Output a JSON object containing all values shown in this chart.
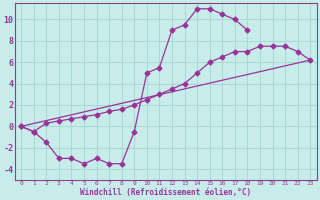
{
  "xlabel": "Windchill (Refroidissement éolien,°C)",
  "bg_color": "#c8ecea",
  "grid_color": "#a8d8d4",
  "line_color": "#993399",
  "spine_color": "#884488",
  "xlim": [
    -0.5,
    23.5
  ],
  "ylim": [
    -5.0,
    11.5
  ],
  "xticks": [
    0,
    1,
    2,
    3,
    4,
    5,
    6,
    7,
    8,
    9,
    10,
    11,
    12,
    13,
    14,
    15,
    16,
    17,
    18,
    19,
    20,
    21,
    22,
    23
  ],
  "yticks": [
    -4,
    -2,
    0,
    2,
    4,
    6,
    8,
    10
  ],
  "line1_x": [
    0,
    1,
    2,
    3,
    4,
    5,
    6,
    7,
    8,
    9,
    10,
    11,
    12,
    13,
    14,
    15,
    16,
    17,
    18
  ],
  "line1_y": [
    0,
    -0.5,
    -1.5,
    -3,
    -3,
    -3.5,
    -3,
    -3.5,
    -3.5,
    -0.5,
    5,
    5.5,
    9,
    9.5,
    11,
    11,
    10.5,
    10,
    9
  ],
  "line2_x": [
    0,
    23
  ],
  "line2_y": [
    0,
    6.2
  ],
  "line3_x": [
    0,
    1,
    2,
    3,
    4,
    5,
    6,
    7,
    8,
    9,
    10,
    11,
    12,
    13,
    14,
    15,
    16,
    17,
    18,
    19,
    20,
    21,
    22,
    23
  ],
  "line3_y": [
    0,
    -0.5,
    0.3,
    0.5,
    0.7,
    0.9,
    1.1,
    1.4,
    1.6,
    2.0,
    2.5,
    3.0,
    3.5,
    4.0,
    5.0,
    6.0,
    6.5,
    7.0,
    7.0,
    7.5,
    7.5,
    7.5,
    7.0,
    6.2
  ]
}
